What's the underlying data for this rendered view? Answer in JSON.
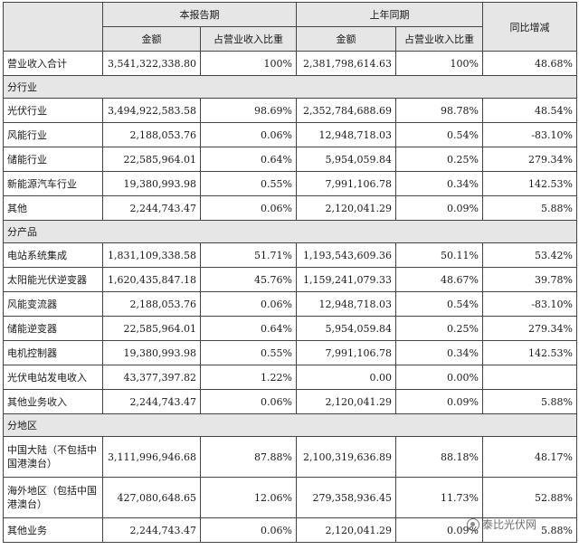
{
  "header": {
    "group_current": "本报告期",
    "group_prior": "上年同期",
    "yoy": "同比增减",
    "amount": "金额",
    "ratio": "占营业收入比重"
  },
  "total": {
    "label": "营业收入合计",
    "cur_amount": "3,541,322,338.80",
    "cur_ratio": "100%",
    "prior_amount": "2,381,798,614.63",
    "prior_ratio": "100%",
    "yoy": "48.68%"
  },
  "sections": [
    {
      "title": "分行业",
      "rows": [
        {
          "label": "光伏行业",
          "cur_amount": "3,494,922,583.58",
          "cur_ratio": "98.69%",
          "prior_amount": "2,352,784,688.69",
          "prior_ratio": "98.78%",
          "yoy": "48.54%"
        },
        {
          "label": "风能行业",
          "cur_amount": "2,188,053.76",
          "cur_ratio": "0.06%",
          "prior_amount": "12,948,718.03",
          "prior_ratio": "0.54%",
          "yoy": "-83.10%"
        },
        {
          "label": "储能行业",
          "cur_amount": "22,585,964.01",
          "cur_ratio": "0.64%",
          "prior_amount": "5,954,059.84",
          "prior_ratio": "0.25%",
          "yoy": "279.34%"
        },
        {
          "label": "新能源汽车行业",
          "cur_amount": "19,380,993.98",
          "cur_ratio": "0.55%",
          "prior_amount": "7,991,106.78",
          "prior_ratio": "0.34%",
          "yoy": "142.53%"
        },
        {
          "label": "其他",
          "cur_amount": "2,244,743.47",
          "cur_ratio": "0.06%",
          "prior_amount": "2,120,041.29",
          "prior_ratio": "0.09%",
          "yoy": "5.88%"
        }
      ]
    },
    {
      "title": "分产品",
      "rows": [
        {
          "label": "电站系统集成",
          "cur_amount": "1,831,109,338.58",
          "cur_ratio": "51.71%",
          "prior_amount": "1,193,543,609.36",
          "prior_ratio": "50.11%",
          "yoy": "53.42%"
        },
        {
          "label": "太阳能光伏逆变器",
          "cur_amount": "1,620,435,847.18",
          "cur_ratio": "45.76%",
          "prior_amount": "1,159,241,079.33",
          "prior_ratio": "48.67%",
          "yoy": "39.78%"
        },
        {
          "label": "风能变流器",
          "cur_amount": "2,188,053.76",
          "cur_ratio": "0.06%",
          "prior_amount": "12,948,718.03",
          "prior_ratio": "0.54%",
          "yoy": "-83.10%"
        },
        {
          "label": "储能逆变器",
          "cur_amount": "22,585,964.01",
          "cur_ratio": "0.64%",
          "prior_amount": "5,954,059.84",
          "prior_ratio": "0.25%",
          "yoy": "279.34%"
        },
        {
          "label": "电机控制器",
          "cur_amount": "19,380,993.98",
          "cur_ratio": "0.55%",
          "prior_amount": "7,991,106.78",
          "prior_ratio": "0.34%",
          "yoy": "142.53%"
        },
        {
          "label": "光伏电站发电收入",
          "cur_amount": "43,377,397.82",
          "cur_ratio": "1.22%",
          "prior_amount": "0.00",
          "prior_ratio": "0.00%",
          "yoy": ""
        },
        {
          "label": "其他业务收入",
          "cur_amount": "2,244,743.47",
          "cur_ratio": "0.06%",
          "prior_amount": "2,120,041.29",
          "prior_ratio": "0.09%",
          "yoy": "5.88%"
        }
      ]
    },
    {
      "title": "分地区",
      "rows": [
        {
          "label": "中国大陆（不包括中国港澳台）",
          "cur_amount": "3,111,996,946.68",
          "cur_ratio": "87.88%",
          "prior_amount": "2,100,319,636.89",
          "prior_ratio": "88.18%",
          "yoy": "48.17%",
          "tall": true
        },
        {
          "label": "海外地区（包括中国港澳台）",
          "cur_amount": "427,080,648.65",
          "cur_ratio": "12.06%",
          "prior_amount": "279,358,936.45",
          "prior_ratio": "11.73%",
          "yoy": "52.88%",
          "tall": true
        },
        {
          "label": "其他业务",
          "cur_amount": "2,244,743.47",
          "cur_ratio": "0.06%",
          "prior_amount": "2,120,041.29",
          "prior_ratio": "0.09%",
          "yoy": "5.88%"
        }
      ]
    }
  ],
  "watermark": {
    "text": "泰比光伏网",
    "icon": "wechat-logo-icon"
  }
}
